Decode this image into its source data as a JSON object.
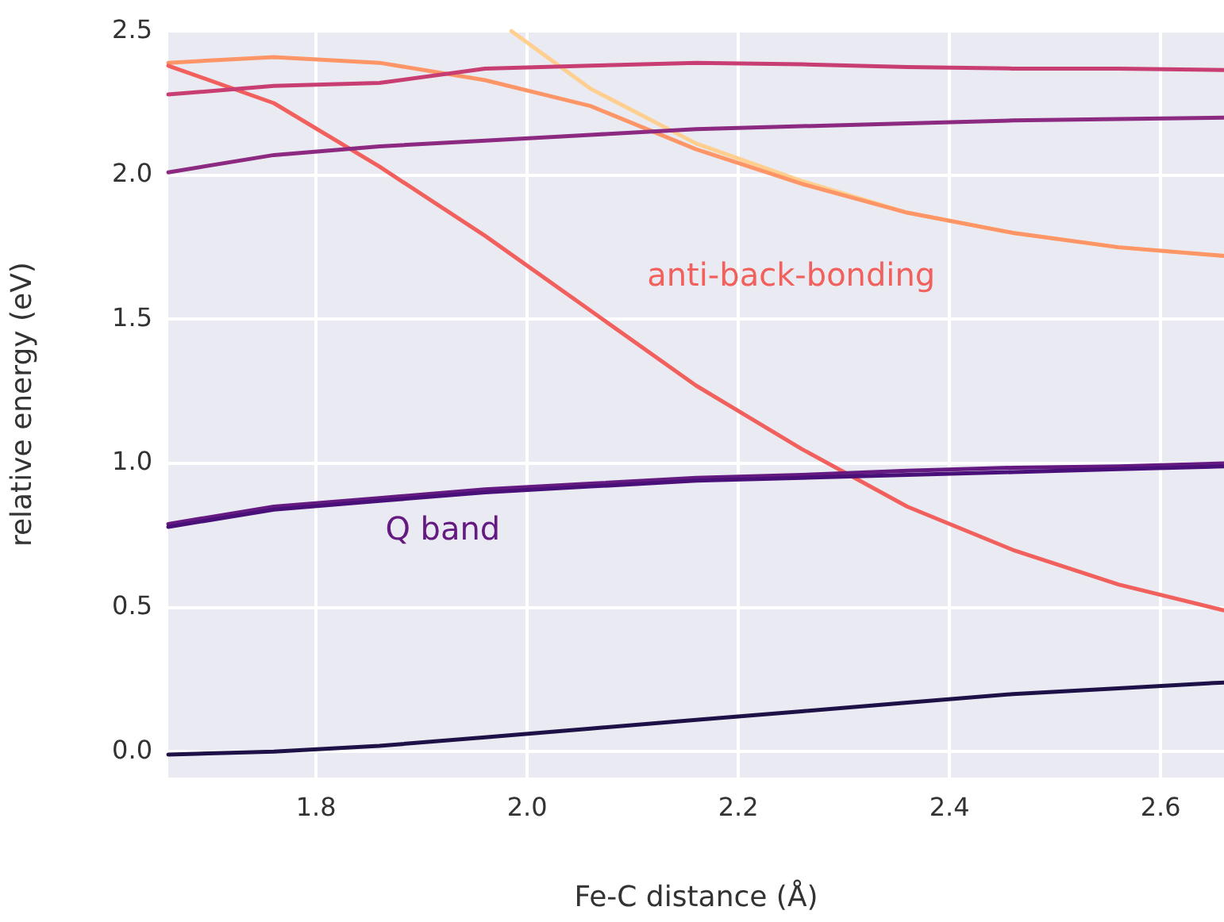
{
  "chart_data": {
    "type": "line",
    "xlabel": "Fe-C distance (Å)",
    "ylabel": "relative energy (eV)",
    "x": [
      1.66,
      1.76,
      1.86,
      1.96,
      2.06,
      2.16,
      2.26,
      2.36,
      2.46,
      2.56,
      2.66
    ],
    "xlim": [
      1.66,
      2.66
    ],
    "ylim": [
      -0.09,
      2.5
    ],
    "xticks": [
      1.8,
      {
        "value": 2.0,
        "label": "2.0"
      },
      2.2,
      2.4,
      2.6
    ],
    "yticks": [
      {
        "value": 0,
        "label": "0.0"
      },
      0.5,
      {
        "value": 1,
        "label": "1.0"
      },
      1.5,
      {
        "value": 2,
        "label": "2.0"
      },
      2.5
    ],
    "grid": true,
    "marker": "none",
    "line_style": "solid",
    "series": [
      {
        "color": "#1d1147",
        "values": [
          -0.01,
          0.0,
          0.02,
          0.05,
          0.08,
          0.11,
          0.14,
          0.17,
          0.2,
          0.22,
          0.24
        ]
      },
      {
        "color": "#4a1079",
        "values": [
          0.78,
          0.84,
          0.87,
          0.9,
          0.92,
          0.94,
          0.95,
          0.96,
          0.97,
          0.98,
          0.99
        ]
      },
      {
        "color": "#641a80",
        "values": [
          0.79,
          0.85,
          0.88,
          0.91,
          0.93,
          0.95,
          0.96,
          0.975,
          0.985,
          0.99,
          1.0
        ]
      },
      {
        "color": "#8c2981",
        "values": [
          2.01,
          2.07,
          2.1,
          2.12,
          2.14,
          2.16,
          2.17,
          2.18,
          2.19,
          2.195,
          2.2
        ]
      },
      {
        "color": "#c83e73",
        "values": [
          2.28,
          2.31,
          2.32,
          2.37,
          2.38,
          2.39,
          2.385,
          2.375,
          2.37,
          2.37,
          2.365
        ]
      },
      {
        "color": "#f1605d",
        "values": [
          2.38,
          2.25,
          2.03,
          1.79,
          1.53,
          1.27,
          1.05,
          0.85,
          0.7,
          0.58,
          0.49
        ]
      },
      {
        "color": "#fd9567",
        "values": [
          2.39,
          2.41,
          2.39,
          2.33,
          2.24,
          2.09,
          1.97,
          1.87,
          1.8,
          1.75,
          1.72
        ]
      },
      {
        "color": "#fecf8f",
        "x": [
          1.985,
          2.06,
          2.16,
          2.26,
          2.36,
          2.46,
          2.56,
          2.66
        ],
        "values": [
          2.5,
          2.3,
          2.11,
          1.98,
          1.87,
          1.8,
          1.75,
          1.72
        ]
      }
    ],
    "annotations": [
      "anti-back-bonding",
      "Q band"
    ]
  }
}
